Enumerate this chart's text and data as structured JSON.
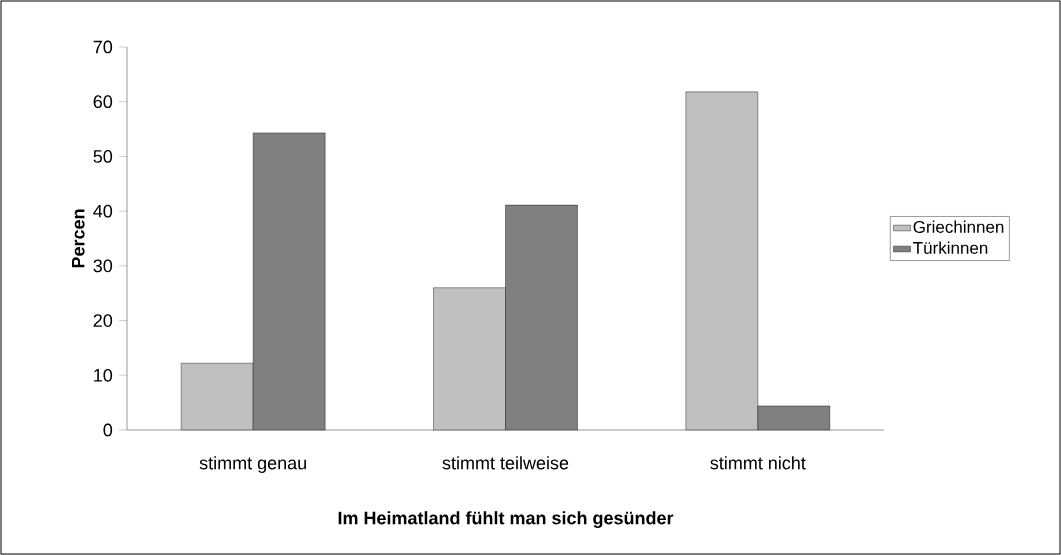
{
  "chart_data": {
    "type": "bar",
    "xlabel": "Im Heimatland fühlt man sich gesünder",
    "ylabel": "Percen",
    "categories": [
      "stimmt genau",
      "stimmt teilweise",
      "stimmt nicht"
    ],
    "series": [
      {
        "name": "Griechinnen",
        "color": "#c0c0c0",
        "values": [
          12.2,
          26.0,
          61.8
        ]
      },
      {
        "name": "Türkinnen",
        "color": "#808080",
        "values": [
          54.3,
          41.1,
          4.4
        ]
      }
    ],
    "ylim": [
      0,
      70
    ],
    "yticks": [
      0,
      10,
      20,
      30,
      40,
      50,
      60,
      70
    ],
    "grid": false,
    "legend": "right"
  }
}
